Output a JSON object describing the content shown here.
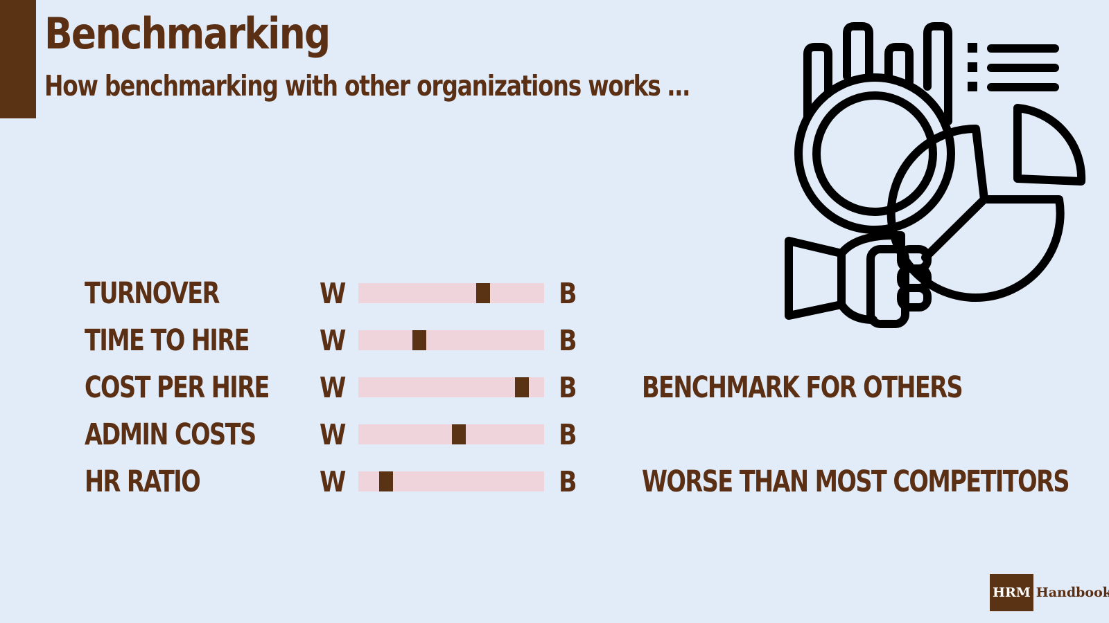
{
  "header": {
    "title": "Benchmarking",
    "subtitle": "How benchmarking with other organizations works …"
  },
  "scale": {
    "worst_label": "W",
    "best_label": "B"
  },
  "metrics": [
    {
      "label": "TURNOVER",
      "level": 0.67,
      "verdict": ""
    },
    {
      "label": "TIME TO HIRE",
      "level": 0.33,
      "verdict": ""
    },
    {
      "label": "COST PER HIRE",
      "level": 0.88,
      "verdict": "BENCHMARK FOR OTHERS"
    },
    {
      "label": "ADMIN COSTS",
      "level": 0.54,
      "verdict": ""
    },
    {
      "label": "HR RATIO",
      "level": 0.15,
      "verdict": "WORSE THAN MOST COMPETITORS"
    }
  ],
  "illustration": {
    "icon": "benchmark-analysis-icon"
  },
  "logo": {
    "mark": "HRM",
    "text": "Handbook"
  },
  "colors": {
    "accent": "#5a3214",
    "track": "#f0d4dc",
    "background": "#e2ecf8"
  }
}
